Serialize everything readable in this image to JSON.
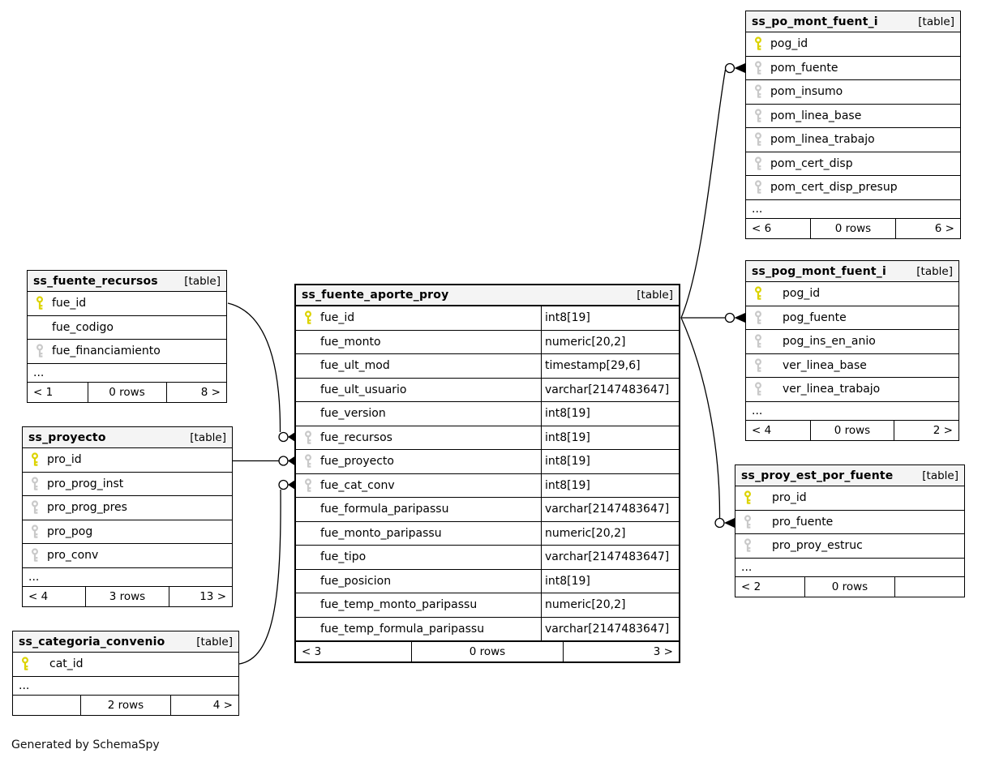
{
  "credit": "Generated by SchemaSpy",
  "colors": {
    "primary_key": "#dcd300",
    "foreign_key": "#c9c9c9",
    "header_bg": "#f4f4f4",
    "border": "#000000"
  },
  "tables": [
    {
      "name": "ss_po_mont_fuent_i",
      "badge": "[table]",
      "columns": [
        {
          "name": "pog_id",
          "key": "pk"
        },
        {
          "name": "pom_fuente",
          "key": "fk"
        },
        {
          "name": "pom_insumo",
          "key": "fk"
        },
        {
          "name": "pom_linea_base",
          "key": "fk"
        },
        {
          "name": "pom_linea_trabajo",
          "key": "fk"
        },
        {
          "name": "pom_cert_disp",
          "key": "fk"
        },
        {
          "name": "pom_cert_disp_presup",
          "key": "fk"
        }
      ],
      "ellipsis": "...",
      "footer": {
        "left": "< 6",
        "center": "0 rows",
        "right": "6 >"
      }
    },
    {
      "name": "ss_pog_mont_fuent_i",
      "badge": "[table]",
      "columns": [
        {
          "name": "pog_id",
          "key": "pk"
        },
        {
          "name": "pog_fuente",
          "key": "fk"
        },
        {
          "name": "pog_ins_en_anio",
          "key": "fk"
        },
        {
          "name": "ver_linea_base",
          "key": "fk"
        },
        {
          "name": "ver_linea_trabajo",
          "key": "fk"
        }
      ],
      "ellipsis": "...",
      "footer": {
        "left": "< 4",
        "center": "0 rows",
        "right": "2 >"
      }
    },
    {
      "name": "ss_proy_est_por_fuente",
      "badge": "[table]",
      "columns": [
        {
          "name": "pro_id",
          "key": "pk"
        },
        {
          "name": "pro_fuente",
          "key": "fk"
        },
        {
          "name": "pro_proy_estruc",
          "key": "fk"
        }
      ],
      "ellipsis": "...",
      "footer": {
        "left": "< 2",
        "center": "0 rows",
        "right": ""
      }
    },
    {
      "name": "ss_fuente_aporte_proy",
      "badge": "[table]",
      "columns": [
        {
          "name": "fue_id",
          "key": "pk",
          "type": "int8[19]"
        },
        {
          "name": "fue_monto",
          "key": "",
          "type": "numeric[20,2]"
        },
        {
          "name": "fue_ult_mod",
          "key": "",
          "type": "timestamp[29,6]"
        },
        {
          "name": "fue_ult_usuario",
          "key": "",
          "type": "varchar[2147483647]"
        },
        {
          "name": "fue_version",
          "key": "",
          "type": "int8[19]"
        },
        {
          "name": "fue_recursos",
          "key": "fk",
          "type": "int8[19]"
        },
        {
          "name": "fue_proyecto",
          "key": "fk",
          "type": "int8[19]"
        },
        {
          "name": "fue_cat_conv",
          "key": "fk",
          "type": "int8[19]"
        },
        {
          "name": "fue_formula_paripassu",
          "key": "",
          "type": "varchar[2147483647]"
        },
        {
          "name": "fue_monto_paripassu",
          "key": "",
          "type": "numeric[20,2]"
        },
        {
          "name": "fue_tipo",
          "key": "",
          "type": "varchar[2147483647]"
        },
        {
          "name": "fue_posicion",
          "key": "",
          "type": "int8[19]"
        },
        {
          "name": "fue_temp_monto_paripassu",
          "key": "",
          "type": "numeric[20,2]"
        },
        {
          "name": "fue_temp_formula_paripassu",
          "key": "",
          "type": "varchar[2147483647]"
        }
      ],
      "ellipsis": null,
      "footer": {
        "left": "< 3",
        "center": "0 rows",
        "right": "3 >"
      }
    },
    {
      "name": "ss_fuente_recursos",
      "badge": "[table]",
      "columns": [
        {
          "name": "fue_id",
          "key": "pk"
        },
        {
          "name": "fue_codigo",
          "key": ""
        },
        {
          "name": "fue_financiamiento",
          "key": "fk"
        }
      ],
      "ellipsis": "...",
      "footer": {
        "left": "< 1",
        "center": "0 rows",
        "right": "8 >"
      }
    },
    {
      "name": "ss_proyecto",
      "badge": "[table]",
      "columns": [
        {
          "name": "pro_id",
          "key": "pk"
        },
        {
          "name": "pro_prog_inst",
          "key": "fk"
        },
        {
          "name": "pro_prog_pres",
          "key": "fk"
        },
        {
          "name": "pro_pog",
          "key": "fk"
        },
        {
          "name": "pro_conv",
          "key": "fk"
        }
      ],
      "ellipsis": "...",
      "footer": {
        "left": "< 4",
        "center": "3 rows",
        "right": "13 >"
      }
    },
    {
      "name": "ss_categoria_convenio",
      "badge": "[table]",
      "columns": [
        {
          "name": "cat_id",
          "key": "pk"
        }
      ],
      "ellipsis": "...",
      "footer": {
        "left": "",
        "center": "2 rows",
        "right": "4 >"
      }
    }
  ],
  "relationships": [
    {
      "from": "ss_fuente_recursos.fue_id",
      "to": "ss_fuente_aporte_proy.fue_recursos"
    },
    {
      "from": "ss_proyecto.pro_id",
      "to": "ss_fuente_aporte_proy.fue_proyecto"
    },
    {
      "from": "ss_categoria_convenio.cat_id",
      "to": "ss_fuente_aporte_proy.fue_cat_conv"
    },
    {
      "from": "ss_fuente_aporte_proy.fue_id",
      "to": "ss_po_mont_fuent_i.pom_fuente"
    },
    {
      "from": "ss_fuente_aporte_proy.fue_id",
      "to": "ss_pog_mont_fuent_i.pog_fuente"
    },
    {
      "from": "ss_fuente_aporte_proy.fue_id",
      "to": "ss_proy_est_por_fuente.pro_fuente"
    }
  ]
}
